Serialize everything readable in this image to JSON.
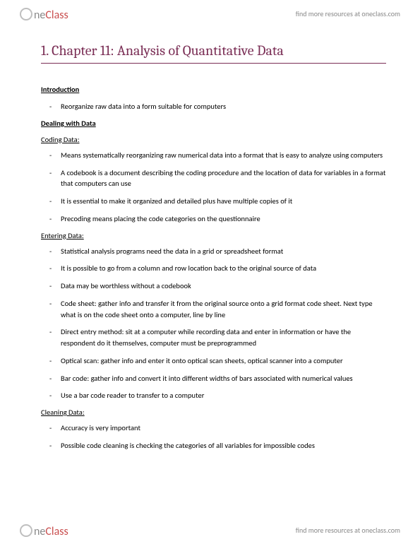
{
  "brand": {
    "one": "ne",
    "class": "Class",
    "tagline": "find more resources at oneclass.com"
  },
  "title": "1.  Chapter 11: Analysis of Quantitative Data",
  "sections": [
    {
      "heading": "Introduction",
      "bold": true,
      "items": [
        "Reorganize raw data into a form suitable for computers"
      ]
    },
    {
      "heading": "Dealing with Data",
      "bold": true,
      "items": []
    },
    {
      "heading": "Coding Data:",
      "bold": false,
      "items": [
        "Means systematically reorganizing raw numerical data into a format that is easy to analyze using computers",
        "A codebook is a document describing the coding procedure and the location of data for variables in a format that computers can use",
        "It is essential to make it organized and detailed plus have multiple copies of it",
        "Precoding means placing the code categories on the questionnaire"
      ]
    },
    {
      "heading": "Entering Data:",
      "bold": false,
      "items": [
        "Statistical analysis programs need the data in a grid or spreadsheet format",
        "It is possible to go from a column and row location back to the original source of data",
        "Data may be worthless without a codebook",
        "Code sheet: gather info and transfer it from the original source onto a grid format code sheet. Next type what is on the code sheet onto a computer, line by line",
        "Direct entry method: sit at a computer while recording data and enter in information or have the respondent do it themselves, computer must be preprogrammed",
        "Optical scan: gather info and enter it onto optical scan sheets, optical scanner into a computer",
        "Bar code: gather info and convert it into different widths of bars associated with numerical values",
        "Use a bar code reader to transfer to a computer"
      ]
    },
    {
      "heading": "Cleaning Data:",
      "bold": false,
      "items": [
        "Accuracy is very important",
        "Possible code cleaning is checking the categories of all variables for impossible codes"
      ]
    }
  ]
}
